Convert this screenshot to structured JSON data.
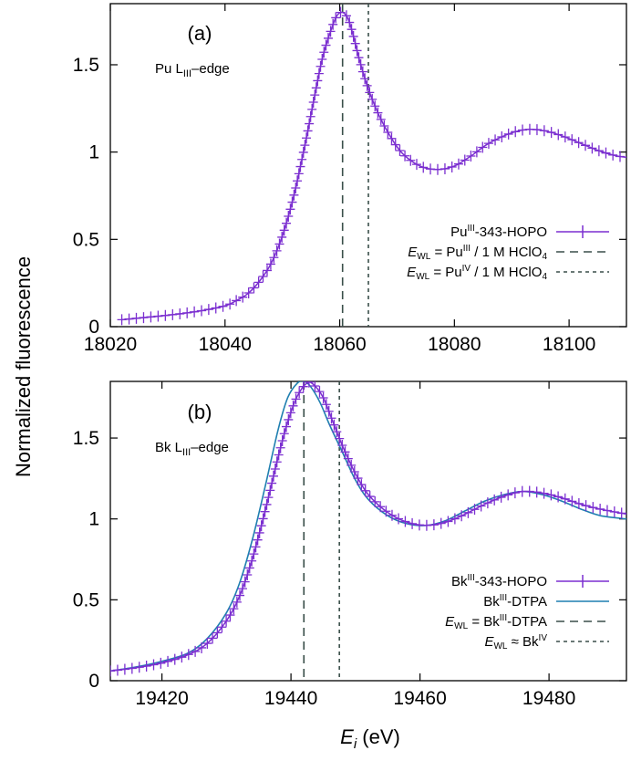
{
  "figure": {
    "ylabel": "Normalized fluorescence",
    "xlabel_main": "E",
    "xlabel_sub": "i",
    "xlabel_unit": " (eV)"
  },
  "colors": {
    "hopo": "#7b2fd0",
    "dtpa": "#1f7fb0",
    "marker_line": "#3a4f4a",
    "axis": "#000000"
  },
  "chart_data": [
    {
      "type": "line",
      "panel": "(a)",
      "edge_label": {
        "element": "Pu L",
        "sub": "III",
        "suffix": "–edge"
      },
      "xlim": [
        18020,
        18110
      ],
      "ylim": [
        0,
        1.85
      ],
      "xticks": [
        18020,
        18040,
        18060,
        18080,
        18100
      ],
      "xtick_labels": [
        "18020",
        "18040",
        "18060",
        "18080",
        "18100"
      ],
      "yticks": [
        0,
        0.5,
        1,
        1.5
      ],
      "ytick_labels": [
        "0",
        "0.5",
        "1",
        "1.5"
      ],
      "series": [
        {
          "name": "PuIII-343-HOPO",
          "style": "line-plus",
          "x": [
            18022,
            18032.5,
            18039.5,
            18042,
            18044,
            18046,
            18048,
            18050,
            18052,
            18054,
            18055.5,
            18057,
            18058.5,
            18059.5,
            18060.5,
            18061.5,
            18062.5,
            18063.5,
            18065,
            18067,
            18069,
            18071,
            18074,
            18077,
            18080,
            18083,
            18086,
            18090,
            18093,
            18096,
            18099,
            18102,
            18105,
            18108,
            18110
          ],
          "y": [
            0.04,
            0.075,
            0.115,
            0.15,
            0.19,
            0.26,
            0.36,
            0.52,
            0.75,
            1.05,
            1.3,
            1.54,
            1.7,
            1.78,
            1.8,
            1.76,
            1.65,
            1.52,
            1.36,
            1.2,
            1.08,
            0.99,
            0.92,
            0.9,
            0.92,
            0.98,
            1.05,
            1.11,
            1.13,
            1.12,
            1.09,
            1.05,
            1.01,
            0.98,
            0.97
          ]
        }
      ],
      "vlines": [
        {
          "x": 18060.5,
          "style": "dashed",
          "name": "E_WL PuIII"
        },
        {
          "x": 18065,
          "style": "dotted",
          "name": "E_WL PuIV"
        }
      ],
      "legend": [
        {
          "style": "line-plus",
          "name": "",
          "prefix": "Pu",
          "sup": "III",
          "suffix": "-343-HOPO"
        },
        {
          "style": "dashed",
          "name": "E",
          "sub": "WL",
          "prefix": " = Pu",
          "sup": "III",
          "suffix": " / 1 M HClO",
          "sub2": "4"
        },
        {
          "style": "dotted",
          "name": "E",
          "sub": "WL",
          "prefix": " = Pu",
          "sup": "IV",
          "suffix": " / 1 M HClO",
          "sub2": "4"
        }
      ]
    },
    {
      "type": "line",
      "panel": "(b)",
      "edge_label": {
        "element": "Bk L",
        "sub": "III",
        "suffix": "–edge"
      },
      "xlim": [
        19412,
        19492
      ],
      "ylim": [
        0,
        1.85
      ],
      "xticks": [
        19420,
        19440,
        19460,
        19480
      ],
      "xtick_labels": [
        "19420",
        "19440",
        "19460",
        "19480"
      ],
      "yticks": [
        0,
        0.5,
        1,
        1.5
      ],
      "ytick_labels": [
        "0",
        "0.5",
        "1",
        "1.5"
      ],
      "series": [
        {
          "name": "BkIII-343-HOPO",
          "style": "line-plus",
          "x": [
            19412,
            19416,
            19420,
            19424,
            19427,
            19430,
            19432,
            19434,
            19436,
            19438,
            19439.5,
            19441,
            19442.5,
            19443.5,
            19445,
            19446.5,
            19448,
            19450,
            19452,
            19455,
            19458,
            19461,
            19464,
            19467,
            19470,
            19473,
            19476,
            19479,
            19482,
            19485,
            19488,
            19492
          ],
          "y": [
            0.06,
            0.08,
            0.11,
            0.16,
            0.23,
            0.37,
            0.52,
            0.75,
            1.05,
            1.38,
            1.6,
            1.76,
            1.84,
            1.83,
            1.75,
            1.6,
            1.45,
            1.28,
            1.15,
            1.04,
            0.98,
            0.96,
            0.98,
            1.03,
            1.09,
            1.14,
            1.17,
            1.16,
            1.13,
            1.09,
            1.06,
            1.03
          ]
        },
        {
          "name": "BkIII-DTPA",
          "style": "solid",
          "x": [
            19412,
            19416,
            19420,
            19424,
            19427,
            19430,
            19432,
            19434,
            19436,
            19438,
            19439.5,
            19441,
            19442,
            19443,
            19444.5,
            19446,
            19448,
            19450,
            19452,
            19455,
            19458,
            19461,
            19464,
            19467,
            19470,
            19473,
            19476,
            19479,
            19482,
            19485,
            19488,
            19492
          ],
          "y": [
            0.06,
            0.085,
            0.12,
            0.17,
            0.26,
            0.42,
            0.6,
            0.87,
            1.2,
            1.55,
            1.75,
            1.84,
            1.85,
            1.82,
            1.72,
            1.58,
            1.41,
            1.24,
            1.12,
            1.02,
            0.97,
            0.96,
            0.99,
            1.05,
            1.11,
            1.15,
            1.17,
            1.15,
            1.11,
            1.06,
            1.02,
            1.0
          ]
        }
      ],
      "vlines": [
        {
          "x": 19442,
          "style": "dashed",
          "name": "E_WL BkIII-DTPA"
        },
        {
          "x": 19447.5,
          "style": "dotted",
          "name": "E_WL BkIV"
        }
      ],
      "legend": [
        {
          "style": "line-plus",
          "name": "",
          "prefix": "Bk",
          "sup": "III",
          "suffix": "-343-HOPO"
        },
        {
          "style": "solid",
          "name": "",
          "prefix": "Bk",
          "sup": "III",
          "suffix": "-DTPA"
        },
        {
          "style": "dashed",
          "name": "E",
          "sub": "WL",
          "prefix": " = Bk",
          "sup": "III",
          "suffix": "-DTPA"
        },
        {
          "style": "dotted",
          "name": "E",
          "sub": "WL",
          "prefix": " ≈ Bk",
          "sup": "IV",
          "suffix": ""
        }
      ]
    }
  ]
}
